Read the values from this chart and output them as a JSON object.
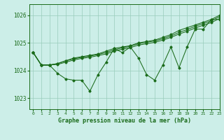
{
  "background_color": "#cceee8",
  "grid_color": "#99ccbb",
  "line_color": "#1a6b1a",
  "title": "Graphe pression niveau de la mer (hPa)",
  "xlim": [
    -0.5,
    23
  ],
  "ylim": [
    1022.6,
    1026.4
  ],
  "yticks": [
    1023,
    1024,
    1025,
    1026
  ],
  "xtick_labels": [
    "0",
    "1",
    "2",
    "3",
    "4",
    "5",
    "6",
    "7",
    "8",
    "9",
    "10",
    "11",
    "12",
    "13",
    "14",
    "15",
    "16",
    "17",
    "18",
    "19",
    "20",
    "21",
    "22",
    "23"
  ],
  "xticks": [
    0,
    1,
    2,
    3,
    4,
    5,
    6,
    7,
    8,
    9,
    10,
    11,
    12,
    13,
    14,
    15,
    16,
    17,
    18,
    19,
    20,
    21,
    22,
    23
  ],
  "series": [
    [
      1024.65,
      1024.2,
      1024.2,
      1023.9,
      1023.7,
      1023.65,
      1023.65,
      1023.25,
      1023.85,
      1024.3,
      1024.8,
      1024.65,
      1024.85,
      1024.45,
      1023.85,
      1023.65,
      1024.2,
      1024.85,
      1024.1,
      1024.85,
      1025.5,
      1025.5,
      1025.85,
      1025.85
    ],
    [
      1024.65,
      1024.2,
      1024.2,
      1024.25,
      1024.35,
      1024.45,
      1024.5,
      1024.55,
      1024.6,
      1024.7,
      1024.8,
      1024.85,
      1024.9,
      1025.0,
      1025.05,
      1025.1,
      1025.2,
      1025.3,
      1025.45,
      1025.55,
      1025.65,
      1025.75,
      1025.85,
      1026.0
    ],
    [
      1024.65,
      1024.2,
      1024.2,
      1024.25,
      1024.35,
      1024.42,
      1024.48,
      1024.52,
      1024.58,
      1024.65,
      1024.75,
      1024.82,
      1024.88,
      1024.97,
      1025.02,
      1025.07,
      1025.15,
      1025.25,
      1025.38,
      1025.48,
      1025.6,
      1025.7,
      1025.8,
      1025.95
    ],
    [
      1024.65,
      1024.2,
      1024.2,
      1024.22,
      1024.3,
      1024.38,
      1024.44,
      1024.48,
      1024.54,
      1024.6,
      1024.7,
      1024.77,
      1024.83,
      1024.92,
      1024.97,
      1025.02,
      1025.1,
      1025.2,
      1025.32,
      1025.42,
      1025.54,
      1025.64,
      1025.74,
      1025.88
    ]
  ]
}
